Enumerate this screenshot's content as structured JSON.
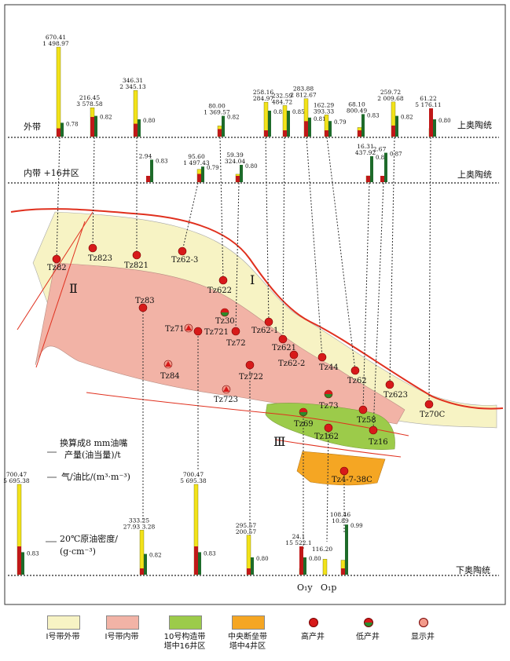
{
  "zones": {
    "outer_belt": "外带",
    "inner_belt": "内带 +16井区",
    "upper_ordovician": "上奥陶统",
    "lower_ordovician": "下奥陶统",
    "roman_1": "Ⅰ",
    "roman_2": "Ⅱ",
    "roman_3": "Ⅲ"
  },
  "axis_notes": {
    "oil_production": [
      "换算成8 mm油嘴",
      "产量(油当量)/t"
    ],
    "gas_oil_ratio": "气/油比/(m³·m⁻³)",
    "density": [
      "20℃原油密度/",
      "(g·cm⁻³)"
    ]
  },
  "outer_bars": [
    {
      "oil": "670.41",
      "gor": "1 498.97",
      "den": "0.78"
    },
    {
      "oil": "216.45",
      "gor": "3 578.58",
      "den": "0.82"
    },
    {
      "oil": "346.31",
      "gor": "2 345.13",
      "den": "0.80"
    },
    {
      "oil": "80.00",
      "gor": "1 369.57",
      "den": "0.82"
    },
    {
      "oil": "258.16",
      "gor": "284.97",
      "den": "0.85"
    },
    {
      "oil": "232.59",
      "gor": "484.72",
      "den": "0.85"
    },
    {
      "oil": "283.88",
      "gor": "2 812.67",
      "den": "0.81"
    },
    {
      "oil": "162.29",
      "gor": "393.33",
      "den": "0.79"
    },
    {
      "oil": "68.10",
      "gor": "800.49",
      "den": "0.83"
    },
    {
      "oil": "259.72",
      "gor": "2 009.68",
      "den": "0.82"
    },
    {
      "oil": "61.22",
      "gor": "5 176.11",
      "den": "0.80"
    }
  ],
  "inner_bars": [
    {
      "oil": "",
      "gor": "2.94",
      "den": "0.83"
    },
    {
      "oil": "95.60",
      "gor": "1 497.43",
      "den": "0.79"
    },
    {
      "oil": "59.39",
      "gor": "324.04",
      "den": "0.80"
    },
    {
      "oil": "16.31",
      "gor": "437.92",
      "den": "0.85"
    },
    {
      "oil": "",
      "gor": "2.67",
      "den": "0.87"
    }
  ],
  "lower_bars": [
    {
      "oil": "700.47",
      "gor": "5 695.38",
      "den": "0.83"
    },
    {
      "oil": "333.25",
      "gor": "27.93 3.28",
      "den": "0.82"
    },
    {
      "oil": "700.47",
      "gor": "5 695.38",
      "den": "0.83"
    },
    {
      "oil": "295.57",
      "gor": "200.57",
      "den": "0.80"
    },
    {
      "oil": "24.1",
      "gor": "15 522.1",
      "den": "0.80"
    },
    {
      "oil": "116.20",
      "gor": "",
      "den": ""
    },
    {
      "oil": "108.46",
      "gor": "10.89",
      "den": "0.99"
    }
  ],
  "lower_strata": [
    "O₁y",
    "O₁p"
  ],
  "wells": [
    "Tz82",
    "Tz823",
    "Tz821",
    "Tz62-3",
    "Tz622",
    "Tz83",
    "Tz71",
    "Tz30",
    "Tz721",
    "Tz62-1",
    "Tz72",
    "Tz621",
    "Tz62-2",
    "Tz44",
    "Tz84",
    "Tz722",
    "Tz62",
    "Tz623",
    "Tz723",
    "Tz73",
    "Tz69",
    "Tz58",
    "Tz70C",
    "Tz162",
    "Tz16",
    "Tz4-7-38C"
  ],
  "legend": {
    "outer": "Ⅰ号带外带",
    "inner": "Ⅰ号带内带",
    "zone10": [
      "10号构造带",
      "塔中16井区"
    ],
    "central": [
      "中央断垒带",
      "塔中4井区"
    ],
    "high": "高产井",
    "low": "低产井",
    "show": "显示井"
  },
  "colors": {
    "outer_fill": "#f7f3c4",
    "inner_fill": "#f2b3a6",
    "zone10_fill": "#9ccb4a",
    "central_fill": "#f5a623",
    "fault": "#e0301e",
    "oil_bar": "#f2e21a",
    "gor_bar": "#c01818",
    "den_bar": "#1e6b2a"
  }
}
